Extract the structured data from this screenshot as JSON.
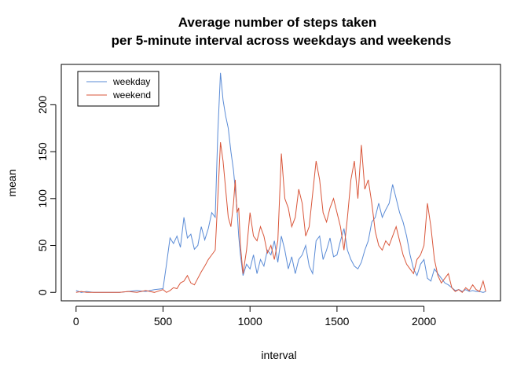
{
  "chart_data": {
    "type": "line",
    "title": "Average number of steps taken",
    "subtitle": "per 5-minute interval across weekdays and weekends",
    "xlabel": "interval",
    "ylabel": "mean",
    "xlim": [
      -85,
      2440
    ],
    "ylim": [
      -9,
      243
    ],
    "xticks": [
      0,
      500,
      1000,
      1500,
      2000
    ],
    "yticks": [
      0,
      50,
      100,
      150,
      200
    ],
    "grid": false,
    "legend_position": "top-left",
    "series": [
      {
        "name": "weekday",
        "color": "#5a8bd6",
        "points": [
          [
            0,
            2
          ],
          [
            30,
            0
          ],
          [
            60,
            1
          ],
          [
            100,
            0
          ],
          [
            150,
            0
          ],
          [
            200,
            0
          ],
          [
            250,
            0
          ],
          [
            300,
            1
          ],
          [
            350,
            2
          ],
          [
            400,
            1
          ],
          [
            450,
            3
          ],
          [
            500,
            4
          ],
          [
            520,
            30
          ],
          [
            540,
            58
          ],
          [
            560,
            52
          ],
          [
            580,
            60
          ],
          [
            600,
            48
          ],
          [
            620,
            80
          ],
          [
            640,
            58
          ],
          [
            660,
            62
          ],
          [
            680,
            46
          ],
          [
            700,
            50
          ],
          [
            720,
            70
          ],
          [
            740,
            56
          ],
          [
            760,
            68
          ],
          [
            780,
            85
          ],
          [
            800,
            80
          ],
          [
            815,
            170
          ],
          [
            830,
            234
          ],
          [
            845,
            205
          ],
          [
            860,
            188
          ],
          [
            875,
            175
          ],
          [
            890,
            150
          ],
          [
            905,
            130
          ],
          [
            915,
            110
          ],
          [
            925,
            90
          ],
          [
            935,
            60
          ],
          [
            945,
            40
          ],
          [
            960,
            18
          ],
          [
            980,
            30
          ],
          [
            1000,
            25
          ],
          [
            1020,
            40
          ],
          [
            1040,
            20
          ],
          [
            1060,
            35
          ],
          [
            1080,
            28
          ],
          [
            1100,
            45
          ],
          [
            1120,
            40
          ],
          [
            1140,
            55
          ],
          [
            1160,
            32
          ],
          [
            1180,
            60
          ],
          [
            1200,
            45
          ],
          [
            1220,
            25
          ],
          [
            1240,
            38
          ],
          [
            1260,
            20
          ],
          [
            1280,
            35
          ],
          [
            1300,
            40
          ],
          [
            1320,
            50
          ],
          [
            1340,
            28
          ],
          [
            1360,
            20
          ],
          [
            1380,
            55
          ],
          [
            1400,
            60
          ],
          [
            1420,
            35
          ],
          [
            1440,
            45
          ],
          [
            1460,
            58
          ],
          [
            1480,
            38
          ],
          [
            1500,
            40
          ],
          [
            1520,
            55
          ],
          [
            1540,
            68
          ],
          [
            1560,
            45
          ],
          [
            1580,
            35
          ],
          [
            1600,
            28
          ],
          [
            1620,
            25
          ],
          [
            1640,
            32
          ],
          [
            1660,
            45
          ],
          [
            1680,
            55
          ],
          [
            1700,
            75
          ],
          [
            1720,
            80
          ],
          [
            1740,
            95
          ],
          [
            1760,
            80
          ],
          [
            1780,
            88
          ],
          [
            1800,
            95
          ],
          [
            1820,
            115
          ],
          [
            1840,
            100
          ],
          [
            1860,
            85
          ],
          [
            1880,
            75
          ],
          [
            1900,
            60
          ],
          [
            1920,
            40
          ],
          [
            1940,
            25
          ],
          [
            1960,
            18
          ],
          [
            1980,
            30
          ],
          [
            2000,
            35
          ],
          [
            2020,
            15
          ],
          [
            2040,
            12
          ],
          [
            2060,
            25
          ],
          [
            2080,
            20
          ],
          [
            2100,
            15
          ],
          [
            2120,
            10
          ],
          [
            2140,
            8
          ],
          [
            2160,
            5
          ],
          [
            2180,
            2
          ],
          [
            2200,
            3
          ],
          [
            2220,
            1
          ],
          [
            2240,
            3
          ],
          [
            2260,
            1
          ],
          [
            2280,
            2
          ],
          [
            2300,
            1
          ],
          [
            2320,
            1
          ],
          [
            2340,
            0
          ],
          [
            2355,
            1
          ]
        ]
      },
      {
        "name": "weekend",
        "color": "#d9563a",
        "points": [
          [
            0,
            0
          ],
          [
            30,
            1
          ],
          [
            60,
            0
          ],
          [
            100,
            0
          ],
          [
            150,
            0
          ],
          [
            200,
            0
          ],
          [
            250,
            0
          ],
          [
            300,
            1
          ],
          [
            350,
            0
          ],
          [
            400,
            2
          ],
          [
            450,
            0
          ],
          [
            500,
            3
          ],
          [
            520,
            0
          ],
          [
            540,
            2
          ],
          [
            560,
            5
          ],
          [
            580,
            4
          ],
          [
            600,
            10
          ],
          [
            620,
            12
          ],
          [
            640,
            18
          ],
          [
            660,
            10
          ],
          [
            680,
            8
          ],
          [
            700,
            15
          ],
          [
            720,
            22
          ],
          [
            740,
            28
          ],
          [
            760,
            35
          ],
          [
            780,
            40
          ],
          [
            800,
            45
          ],
          [
            815,
            100
          ],
          [
            830,
            160
          ],
          [
            845,
            140
          ],
          [
            860,
            110
          ],
          [
            875,
            80
          ],
          [
            890,
            70
          ],
          [
            905,
            95
          ],
          [
            915,
            120
          ],
          [
            925,
            85
          ],
          [
            935,
            90
          ],
          [
            945,
            50
          ],
          [
            960,
            20
          ],
          [
            980,
            45
          ],
          [
            1000,
            85
          ],
          [
            1020,
            60
          ],
          [
            1040,
            55
          ],
          [
            1060,
            70
          ],
          [
            1080,
            60
          ],
          [
            1100,
            42
          ],
          [
            1120,
            50
          ],
          [
            1140,
            35
          ],
          [
            1160,
            55
          ],
          [
            1180,
            148
          ],
          [
            1200,
            100
          ],
          [
            1220,
            90
          ],
          [
            1240,
            70
          ],
          [
            1260,
            80
          ],
          [
            1280,
            110
          ],
          [
            1300,
            95
          ],
          [
            1320,
            60
          ],
          [
            1340,
            70
          ],
          [
            1360,
            105
          ],
          [
            1380,
            140
          ],
          [
            1400,
            120
          ],
          [
            1420,
            85
          ],
          [
            1440,
            75
          ],
          [
            1460,
            90
          ],
          [
            1480,
            100
          ],
          [
            1500,
            85
          ],
          [
            1520,
            70
          ],
          [
            1540,
            45
          ],
          [
            1560,
            80
          ],
          [
            1580,
            120
          ],
          [
            1600,
            140
          ],
          [
            1620,
            100
          ],
          [
            1640,
            157
          ],
          [
            1660,
            110
          ],
          [
            1680,
            120
          ],
          [
            1700,
            95
          ],
          [
            1720,
            65
          ],
          [
            1740,
            50
          ],
          [
            1760,
            45
          ],
          [
            1780,
            55
          ],
          [
            1800,
            50
          ],
          [
            1820,
            60
          ],
          [
            1840,
            70
          ],
          [
            1860,
            55
          ],
          [
            1880,
            40
          ],
          [
            1900,
            30
          ],
          [
            1920,
            25
          ],
          [
            1940,
            20
          ],
          [
            1960,
            35
          ],
          [
            1980,
            40
          ],
          [
            2000,
            50
          ],
          [
            2020,
            95
          ],
          [
            2040,
            70
          ],
          [
            2060,
            35
          ],
          [
            2080,
            18
          ],
          [
            2100,
            10
          ],
          [
            2120,
            15
          ],
          [
            2140,
            20
          ],
          [
            2160,
            5
          ],
          [
            2180,
            1
          ],
          [
            2200,
            3
          ],
          [
            2220,
            0
          ],
          [
            2240,
            5
          ],
          [
            2260,
            2
          ],
          [
            2280,
            8
          ],
          [
            2300,
            3
          ],
          [
            2320,
            1
          ],
          [
            2340,
            12
          ],
          [
            2355,
            1
          ]
        ]
      }
    ]
  }
}
